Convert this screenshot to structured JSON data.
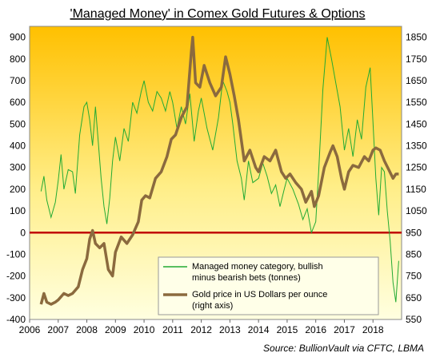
{
  "chart_data": {
    "type": "line",
    "title": "'Managed Money' in Comex Gold Futures & Options",
    "source": "Source: BullionVault via CFTC, LBMA",
    "xlabel": "",
    "ylabel_left": "",
    "ylabel_right": "",
    "x_ticks": [
      "2006",
      "2007",
      "2008",
      "2009",
      "2010",
      "2011",
      "2012",
      "2013",
      "2014",
      "2015",
      "2016",
      "2017",
      "2018"
    ],
    "xlim": [
      2006.0,
      2019.0
    ],
    "ylim_left": [
      -400,
      950
    ],
    "ylim_right": [
      550,
      1900
    ],
    "left_ticks": [
      900,
      800,
      700,
      600,
      500,
      400,
      300,
      200,
      100,
      0,
      -100,
      -200,
      -300,
      -400
    ],
    "right_ticks": [
      1850,
      1750,
      1650,
      1550,
      1450,
      1350,
      1250,
      1150,
      1050,
      950,
      850,
      750,
      650,
      550
    ],
    "zero_line": 0,
    "background": {
      "top": "#FFC000",
      "bottom": "#FFFFE0"
    },
    "series": [
      {
        "name": "Managed money category, bullish minus bearish bets (tonnes)",
        "axis": "left",
        "color": "#22AA33",
        "x": [
          2006.4,
          2006.5,
          2006.6,
          2006.75,
          2006.9,
          2007.0,
          2007.1,
          2007.2,
          2007.35,
          2007.5,
          2007.6,
          2007.75,
          2007.9,
          2008.0,
          2008.1,
          2008.2,
          2008.3,
          2008.4,
          2008.5,
          2008.6,
          2008.7,
          2008.8,
          2008.9,
          2009.0,
          2009.15,
          2009.3,
          2009.45,
          2009.6,
          2009.75,
          2009.9,
          2010.0,
          2010.15,
          2010.3,
          2010.45,
          2010.6,
          2010.75,
          2010.9,
          2011.0,
          2011.15,
          2011.3,
          2011.45,
          2011.6,
          2011.75,
          2011.9,
          2012.0,
          2012.2,
          2012.4,
          2012.6,
          2012.75,
          2012.9,
          2013.0,
          2013.1,
          2013.25,
          2013.4,
          2013.5,
          2013.65,
          2013.8,
          2014.0,
          2014.15,
          2014.3,
          2014.45,
          2014.6,
          2014.75,
          2014.9,
          2015.0,
          2015.2,
          2015.4,
          2015.55,
          2015.7,
          2015.85,
          2016.0,
          2016.1,
          2016.25,
          2016.4,
          2016.55,
          2016.7,
          2016.85,
          2017.0,
          2017.15,
          2017.3,
          2017.45,
          2017.6,
          2017.75,
          2017.9,
          2018.0,
          2018.1,
          2018.2,
          2018.3,
          2018.4,
          2018.5,
          2018.6,
          2018.7,
          2018.8,
          2018.9
        ],
        "values": [
          190,
          260,
          150,
          70,
          140,
          240,
          360,
          200,
          290,
          280,
          180,
          450,
          580,
          600,
          520,
          400,
          580,
          420,
          250,
          120,
          40,
          160,
          330,
          440,
          330,
          480,
          420,
          600,
          550,
          650,
          700,
          600,
          560,
          650,
          620,
          560,
          650,
          600,
          480,
          580,
          500,
          640,
          420,
          560,
          620,
          480,
          380,
          530,
          700,
          650,
          600,
          500,
          330,
          250,
          150,
          330,
          230,
          250,
          320,
          260,
          180,
          220,
          120,
          200,
          250,
          200,
          130,
          60,
          110,
          0,
          50,
          280,
          660,
          900,
          800,
          690,
          580,
          380,
          480,
          350,
          520,
          430,
          670,
          760,
          510,
          250,
          80,
          300,
          280,
          100,
          -40,
          -230,
          -320,
          -130
        ]
      },
      {
        "name": "Gold price in US Dollars per ounce (right axis)",
        "axis": "right",
        "color": "#8B6A3E",
        "x": [
          2006.4,
          2006.5,
          2006.6,
          2006.75,
          2006.9,
          2007.0,
          2007.2,
          2007.35,
          2007.5,
          2007.7,
          2007.85,
          2008.0,
          2008.1,
          2008.2,
          2008.3,
          2008.45,
          2008.6,
          2008.75,
          2008.9,
          2009.0,
          2009.2,
          2009.4,
          2009.6,
          2009.8,
          2009.92,
          2010.05,
          2010.2,
          2010.4,
          2010.6,
          2010.8,
          2010.95,
          2011.1,
          2011.3,
          2011.5,
          2011.65,
          2011.7,
          2011.8,
          2011.95,
          2012.1,
          2012.3,
          2012.5,
          2012.7,
          2012.85,
          2013.0,
          2013.15,
          2013.3,
          2013.5,
          2013.7,
          2013.9,
          2014.0,
          2014.2,
          2014.4,
          2014.6,
          2014.8,
          2014.95,
          2015.1,
          2015.3,
          2015.5,
          2015.65,
          2015.85,
          2015.95,
          2016.1,
          2016.3,
          2016.5,
          2016.6,
          2016.75,
          2016.9,
          2017.0,
          2017.15,
          2017.3,
          2017.5,
          2017.7,
          2017.85,
          2018.0,
          2018.1,
          2018.25,
          2018.4,
          2018.55,
          2018.7,
          2018.8,
          2018.9
        ],
        "values": [
          620,
          670,
          630,
          620,
          630,
          640,
          670,
          660,
          670,
          700,
          780,
          830,
          920,
          960,
          900,
          880,
          900,
          780,
          750,
          860,
          930,
          900,
          940,
          1000,
          1100,
          1120,
          1110,
          1200,
          1230,
          1300,
          1380,
          1400,
          1480,
          1530,
          1780,
          1850,
          1640,
          1620,
          1720,
          1640,
          1580,
          1620,
          1760,
          1680,
          1580,
          1470,
          1280,
          1330,
          1250,
          1230,
          1300,
          1280,
          1330,
          1230,
          1200,
          1220,
          1180,
          1150,
          1090,
          1140,
          1070,
          1120,
          1250,
          1320,
          1350,
          1300,
          1200,
          1150,
          1230,
          1260,
          1250,
          1300,
          1280,
          1330,
          1340,
          1330,
          1280,
          1240,
          1200,
          1220,
          1220
        ]
      }
    ],
    "legend": {
      "placement": "bottom-right",
      "entries": [
        "Managed money category, bullish minus bearish bets (tonnes)",
        "Gold price in US Dollars per ounce (right axis)"
      ],
      "lines": [
        [
          "Managed money category, bullish",
          "minus bearish bets (tonnes)"
        ],
        [
          "Gold price in US Dollars per ounce",
          "(right axis)"
        ]
      ]
    }
  }
}
